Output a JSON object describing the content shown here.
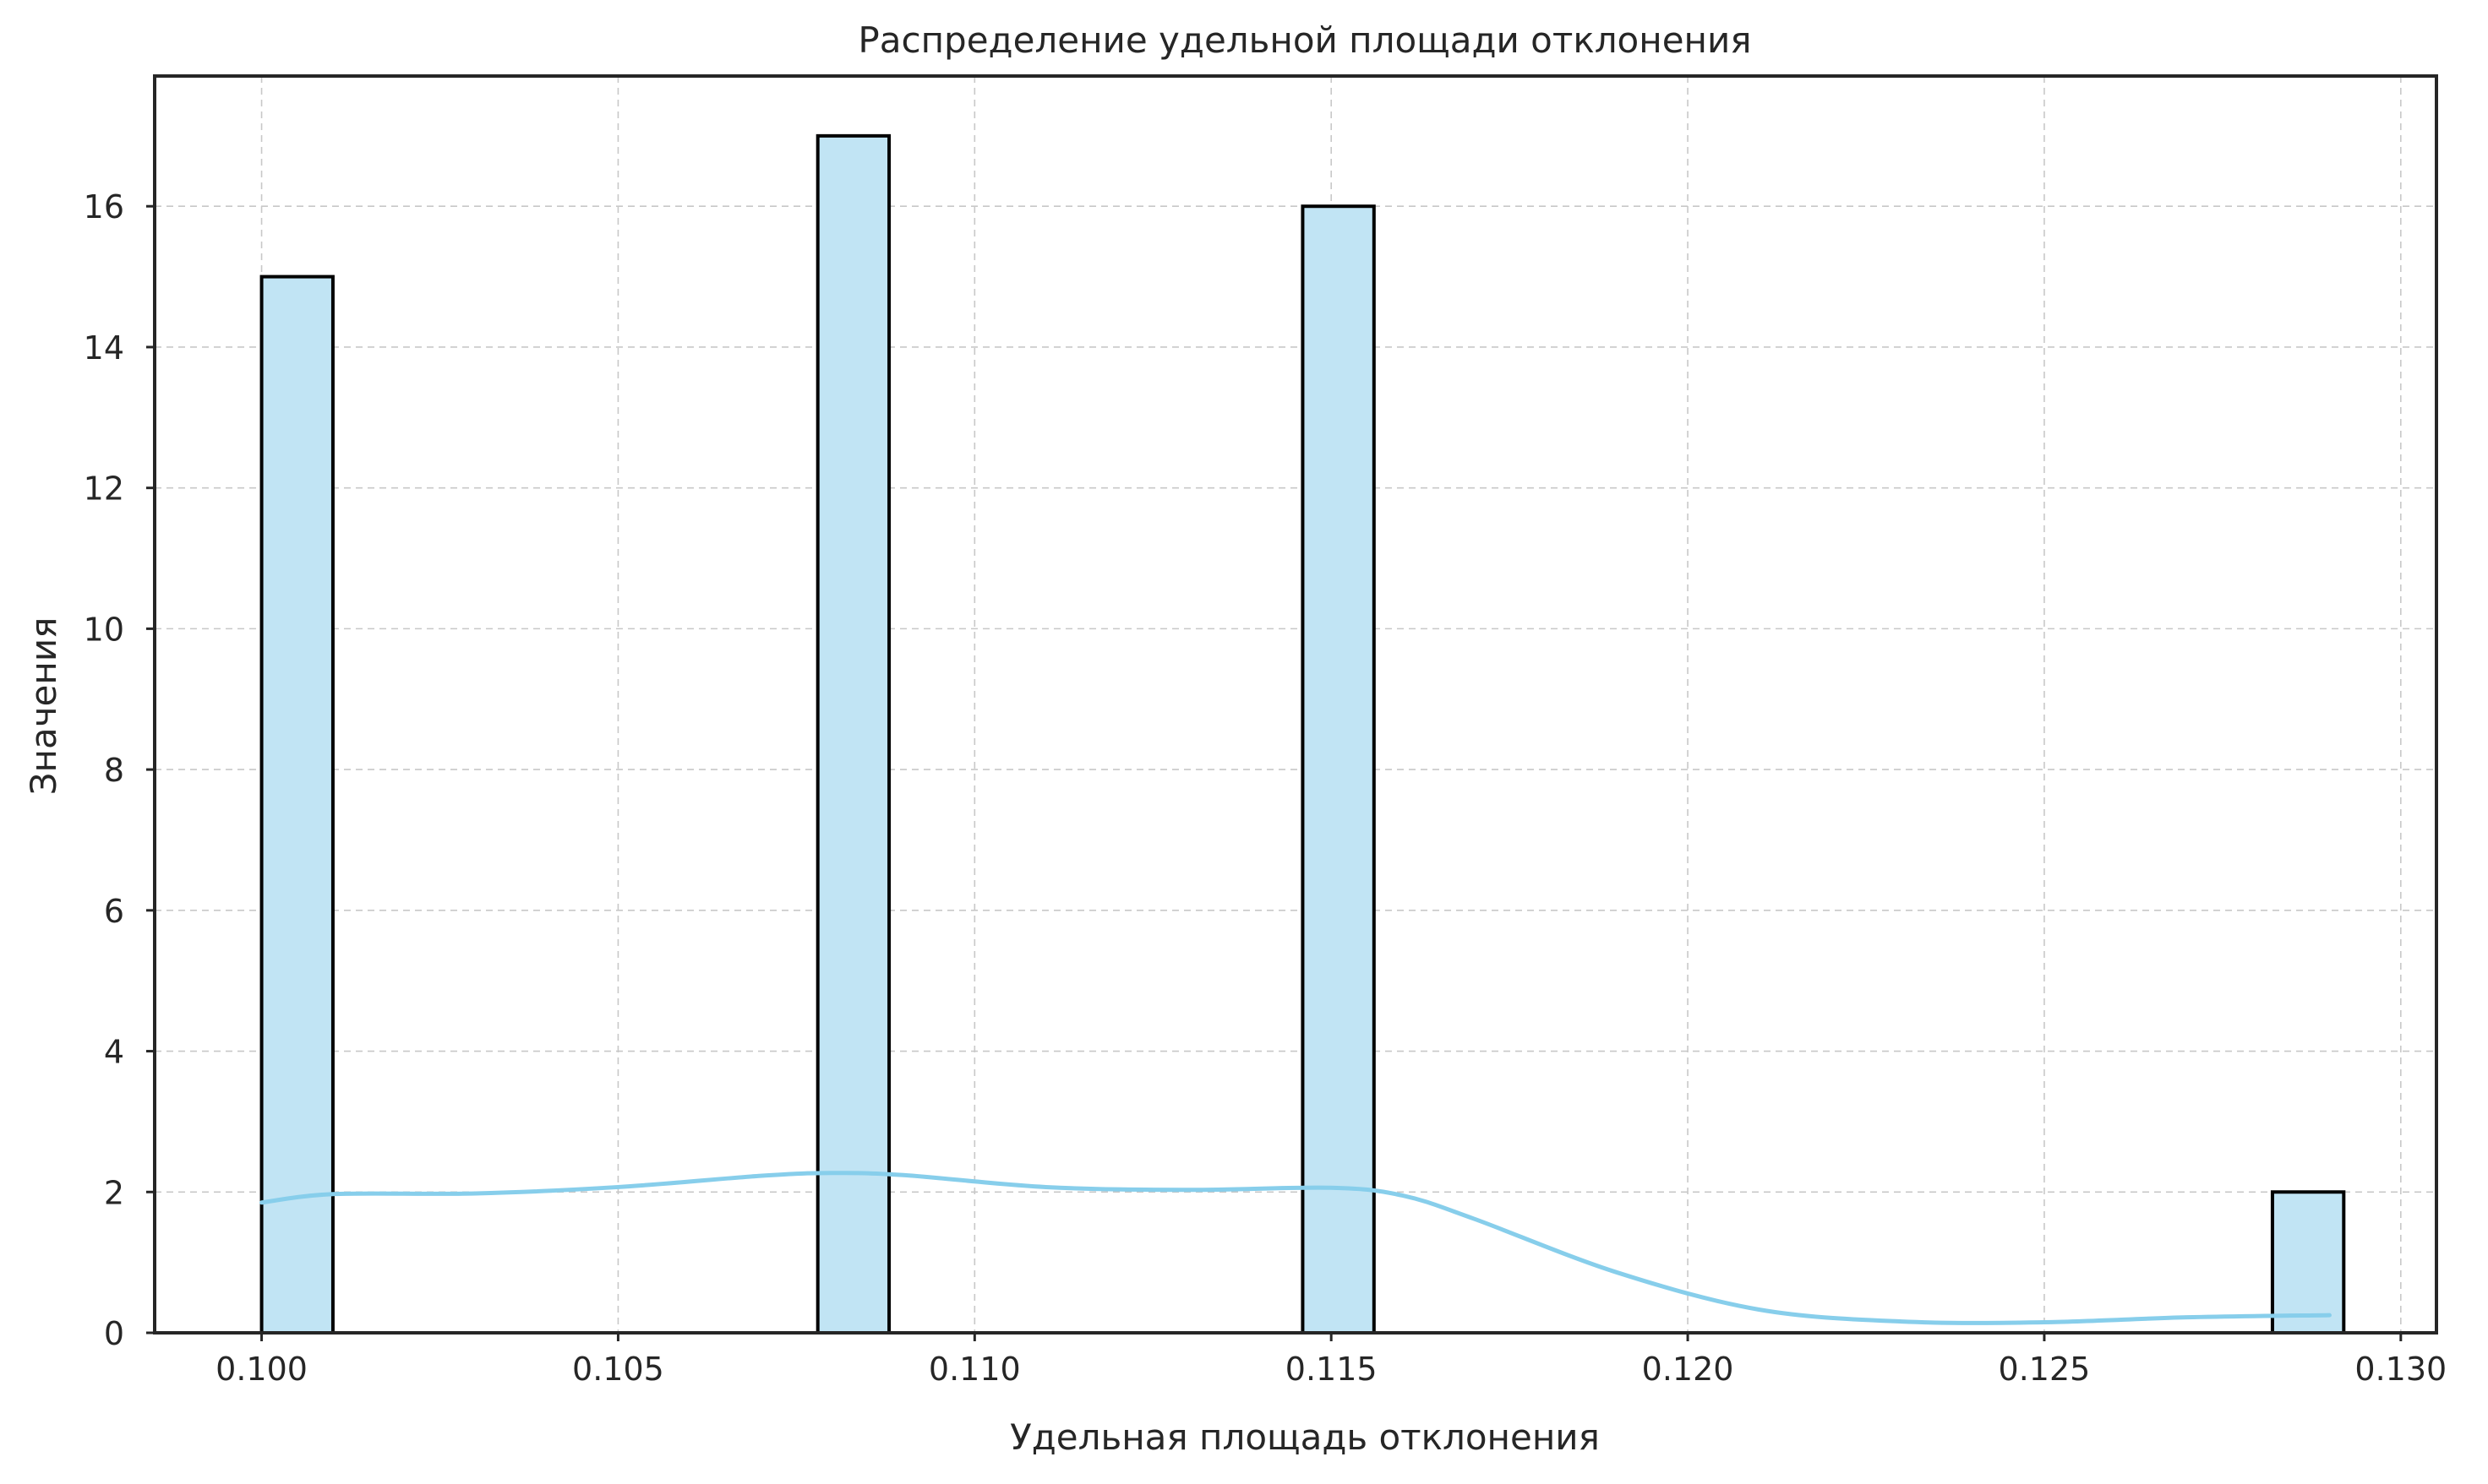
{
  "chart_data": {
    "type": "bar",
    "subtype": "histogram_with_kde",
    "title": "Распределение удельной площади отклонения",
    "xlabel": "Удельная площадь отклонения",
    "ylabel": "Значения",
    "xlim": [
      0.0985,
      0.1305
    ],
    "ylim": [
      0,
      17.85
    ],
    "xticks": [
      "0.100",
      "0.105",
      "0.110",
      "0.115",
      "0.120",
      "0.125",
      "0.130"
    ],
    "yticks": [
      "0",
      "2",
      "4",
      "6",
      "8",
      "10",
      "12",
      "14",
      "16"
    ],
    "bins": [
      {
        "x0": 0.1,
        "x1": 0.101,
        "count": 15
      },
      {
        "x0": 0.1078,
        "x1": 0.1088,
        "count": 17
      },
      {
        "x0": 0.1146,
        "x1": 0.1156,
        "count": 16
      },
      {
        "x0": 0.1282,
        "x1": 0.1292,
        "count": 2
      }
    ],
    "kde": {
      "x": [
        0.1,
        0.101,
        0.103,
        0.105,
        0.107,
        0.108,
        0.109,
        0.111,
        0.113,
        0.115,
        0.116,
        0.117,
        0.119,
        0.121,
        0.123,
        0.125,
        0.127,
        0.129
      ],
      "y": [
        1.85,
        1.97,
        1.98,
        2.07,
        2.23,
        2.27,
        2.24,
        2.07,
        2.03,
        2.06,
        1.95,
        1.62,
        0.86,
        0.33,
        0.16,
        0.15,
        0.22,
        0.25
      ]
    },
    "grid": true,
    "legend": "none",
    "colors": {
      "bar_fill": "#c1e4f4",
      "bar_edge": "#000000",
      "kde_line": "#87ceeb",
      "grid": "#c8c8c8",
      "frame": "#262626"
    }
  }
}
